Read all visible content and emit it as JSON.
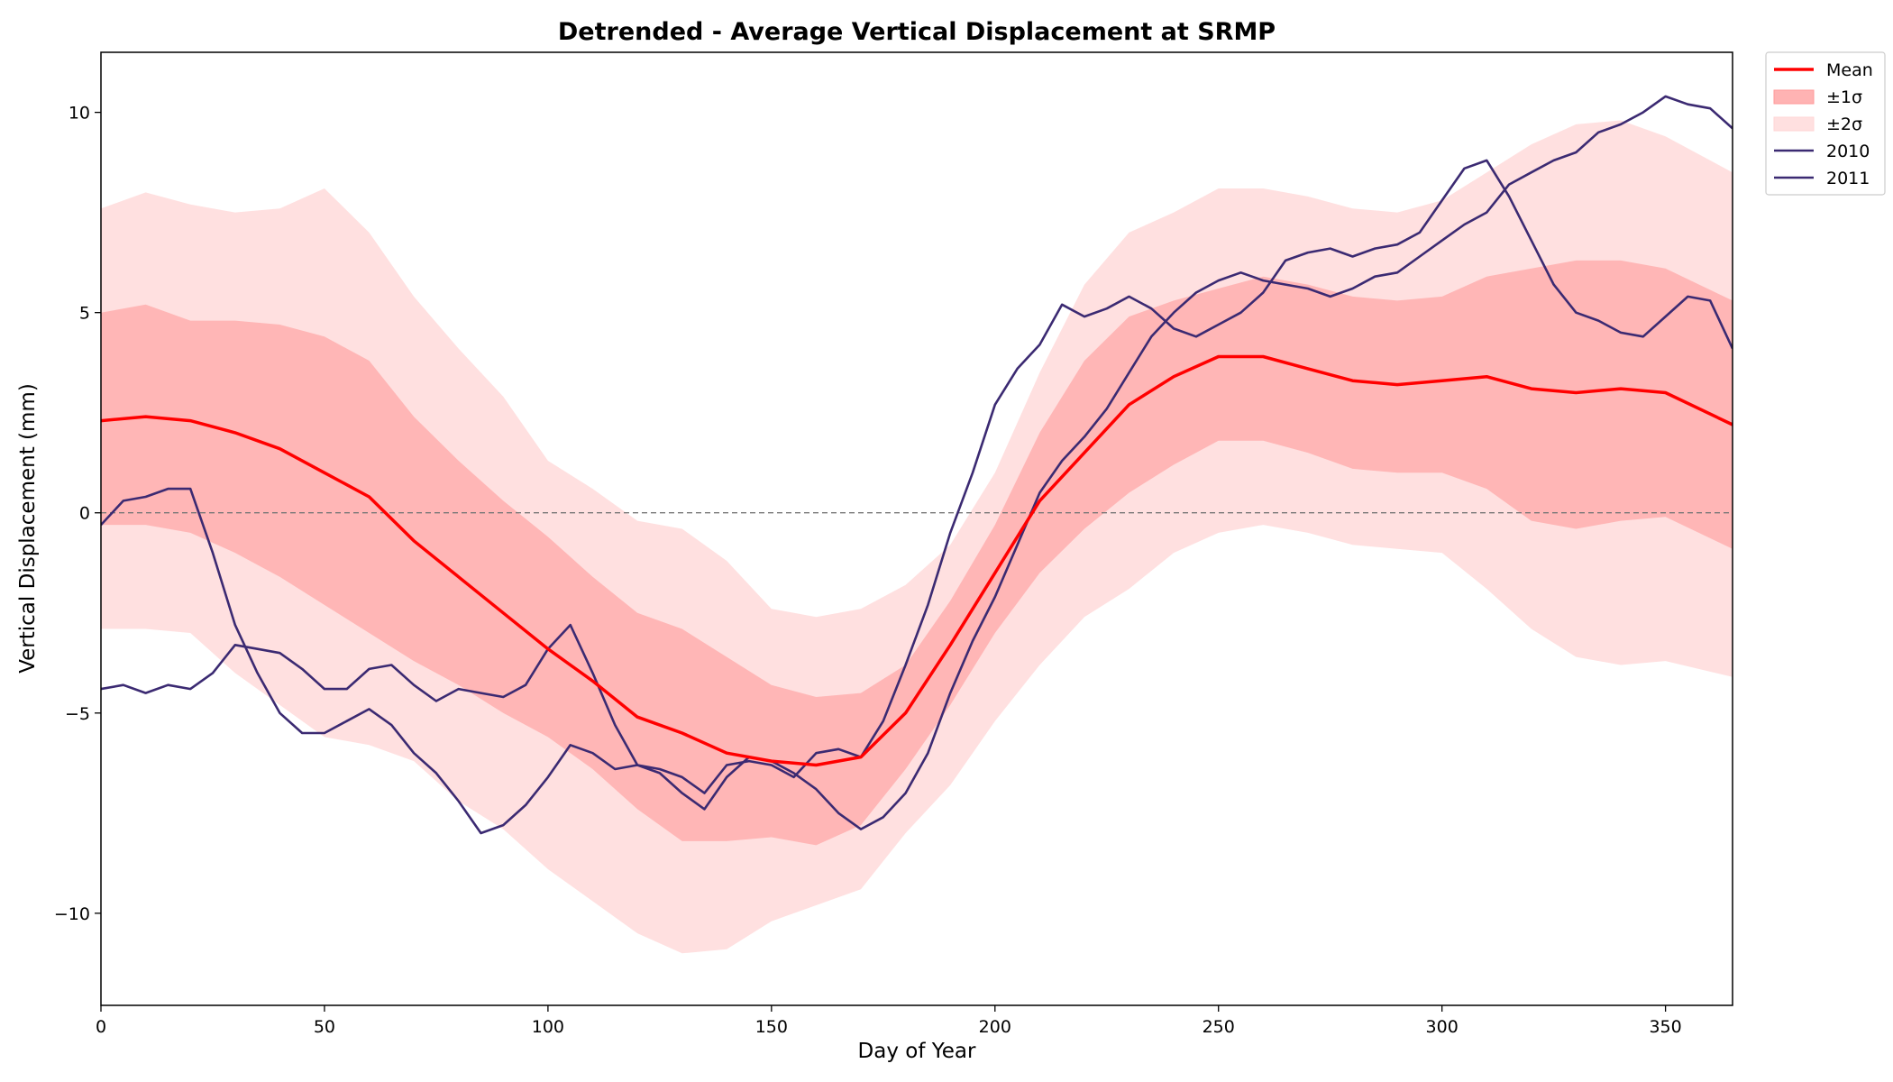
{
  "chart_data": {
    "type": "line",
    "title": "Detrended - Average Vertical Displacement at SRMP",
    "xlabel": "Day of Year",
    "ylabel": "Vertical Displacement (mm)",
    "xlim": [
      0,
      365
    ],
    "ylim": [
      -12.3,
      11.5
    ],
    "x_ticks": [
      0,
      50,
      100,
      150,
      200,
      250,
      300,
      350
    ],
    "y_ticks": [
      -10,
      -5,
      0,
      5,
      10
    ],
    "x_tick_labels": [
      "0",
      "50",
      "100",
      "150",
      "200",
      "250",
      "300",
      "350"
    ],
    "y_tick_labels": [
      "−10",
      "−5",
      "0",
      "5",
      "10"
    ],
    "reference_line": {
      "y": 0,
      "style": "dashed",
      "color": "#777777"
    },
    "legend_placement": "outside-top-right",
    "grid": false,
    "legend": [
      {
        "label": "Mean",
        "kind": "line",
        "color": "#ff0000"
      },
      {
        "label": "±1σ",
        "kind": "patch",
        "color": "#ff9999"
      },
      {
        "label": "±2σ",
        "kind": "patch",
        "color": "#ffd6d6"
      },
      {
        "label": "2010",
        "kind": "line",
        "color": "#3b2a72"
      },
      {
        "label": "2011",
        "kind": "line",
        "color": "#3b2a72"
      }
    ],
    "mean": {
      "name": "Mean",
      "color": "#ff0000",
      "x": [
        0,
        10,
        20,
        30,
        40,
        50,
        60,
        70,
        80,
        90,
        100,
        110,
        120,
        130,
        140,
        150,
        160,
        170,
        180,
        190,
        200,
        210,
        220,
        230,
        240,
        250,
        260,
        270,
        280,
        290,
        300,
        310,
        320,
        330,
        340,
        350,
        365
      ],
      "y": [
        2.3,
        2.4,
        2.3,
        2.0,
        1.6,
        1.0,
        0.4,
        -0.7,
        -1.6,
        -2.5,
        -3.4,
        -4.2,
        -5.1,
        -5.5,
        -6.0,
        -6.2,
        -6.3,
        -6.1,
        -5.0,
        -3.3,
        -1.5,
        0.3,
        1.5,
        2.7,
        3.4,
        3.9,
        3.9,
        3.6,
        3.3,
        3.2,
        3.3,
        3.4,
        3.1,
        3.0,
        3.1,
        3.0,
        2.2
      ]
    },
    "band_1sigma": {
      "name": "±1σ",
      "color": "#ff9999",
      "x": [
        0,
        10,
        20,
        30,
        40,
        50,
        60,
        70,
        80,
        90,
        100,
        110,
        120,
        130,
        140,
        150,
        160,
        170,
        180,
        190,
        200,
        210,
        220,
        230,
        240,
        250,
        260,
        270,
        280,
        290,
        300,
        310,
        320,
        330,
        340,
        350,
        365
      ],
      "upper": [
        5.0,
        5.2,
        4.8,
        4.8,
        4.7,
        4.4,
        3.8,
        2.4,
        1.3,
        0.3,
        -0.6,
        -1.6,
        -2.5,
        -2.9,
        -3.6,
        -4.3,
        -4.6,
        -4.5,
        -3.8,
        -2.2,
        -0.3,
        2.0,
        3.8,
        4.9,
        5.3,
        5.6,
        5.9,
        5.7,
        5.4,
        5.3,
        5.4,
        5.9,
        6.1,
        6.3,
        6.3,
        6.1,
        5.3
      ],
      "lower": [
        -0.3,
        -0.3,
        -0.5,
        -1.0,
        -1.6,
        -2.3,
        -3.0,
        -3.7,
        -4.3,
        -5.0,
        -5.6,
        -6.4,
        -7.4,
        -8.2,
        -8.2,
        -8.1,
        -8.3,
        -7.8,
        -6.4,
        -4.8,
        -3.0,
        -1.5,
        -0.4,
        0.5,
        1.2,
        1.8,
        1.8,
        1.5,
        1.1,
        1.0,
        1.0,
        0.6,
        -0.2,
        -0.4,
        -0.2,
        -0.1,
        -0.9
      ]
    },
    "band_2sigma": {
      "name": "±2σ",
      "color": "#ffd6d6",
      "x": [
        0,
        10,
        20,
        30,
        40,
        50,
        60,
        70,
        80,
        90,
        100,
        110,
        120,
        130,
        140,
        150,
        160,
        170,
        180,
        190,
        200,
        210,
        220,
        230,
        240,
        250,
        260,
        270,
        280,
        290,
        300,
        310,
        320,
        330,
        340,
        350,
        365
      ],
      "upper": [
        7.6,
        8.0,
        7.7,
        7.5,
        7.6,
        8.1,
        7.0,
        5.4,
        4.1,
        2.9,
        1.3,
        0.6,
        -0.2,
        -0.4,
        -1.2,
        -2.4,
        -2.6,
        -2.4,
        -1.8,
        -0.8,
        1.0,
        3.5,
        5.7,
        7.0,
        7.5,
        8.1,
        8.1,
        7.9,
        7.6,
        7.5,
        7.8,
        8.5,
        9.2,
        9.7,
        9.8,
        9.4,
        8.5
      ],
      "lower": [
        -2.9,
        -2.9,
        -3.0,
        -4.0,
        -4.8,
        -5.6,
        -5.8,
        -6.2,
        -7.2,
        -7.9,
        -8.9,
        -9.7,
        -10.5,
        -11.0,
        -10.9,
        -10.2,
        -9.8,
        -9.4,
        -8.0,
        -6.8,
        -5.2,
        -3.8,
        -2.6,
        -1.9,
        -1.0,
        -0.5,
        -0.3,
        -0.5,
        -0.8,
        -0.9,
        -1.0,
        -1.9,
        -2.9,
        -3.6,
        -3.8,
        -3.7,
        -4.1
      ]
    },
    "series": [
      {
        "name": "2010",
        "color": "#3b2a72",
        "x": [
          0,
          5,
          10,
          15,
          20,
          25,
          30,
          35,
          40,
          45,
          50,
          55,
          60,
          65,
          70,
          75,
          80,
          85,
          90,
          95,
          100,
          105,
          110,
          115,
          120,
          125,
          130,
          135,
          140,
          145,
          150,
          155,
          160,
          165,
          170,
          175,
          180,
          185,
          190,
          195,
          200,
          205,
          210,
          215,
          220,
          225,
          230,
          235,
          240,
          245,
          250,
          255,
          260,
          265,
          270,
          275,
          280,
          285,
          290,
          295,
          300,
          305,
          310,
          315,
          320,
          325,
          330,
          335,
          340,
          345,
          350,
          355,
          360,
          365
        ],
        "y": [
          -0.3,
          0.3,
          0.4,
          0.6,
          0.6,
          -1.0,
          -2.8,
          -4.0,
          -5.0,
          -5.5,
          -5.5,
          -5.2,
          -4.9,
          -5.3,
          -6.0,
          -6.5,
          -7.2,
          -8.0,
          -7.8,
          -7.3,
          -6.6,
          -5.8,
          -6.0,
          -6.4,
          -6.3,
          -6.5,
          -7.0,
          -7.4,
          -6.6,
          -6.1,
          -6.2,
          -6.5,
          -6.9,
          -7.5,
          -7.9,
          -7.6,
          -7.0,
          -6.0,
          -4.5,
          -3.2,
          -2.1,
          -0.8,
          0.5,
          1.3,
          1.9,
          2.6,
          3.5,
          4.4,
          5.0,
          5.5,
          5.8,
          6.0,
          5.8,
          5.7,
          5.6,
          5.4,
          5.6,
          5.9,
          6.0,
          6.4,
          6.8,
          7.2,
          7.5,
          8.2,
          8.5,
          8.8,
          9.0,
          9.5,
          9.7,
          10.0,
          10.4,
          10.2,
          10.1,
          9.6
        ]
      },
      {
        "name": "2011",
        "color": "#3b2a72",
        "x": [
          0,
          5,
          10,
          15,
          20,
          25,
          30,
          35,
          40,
          45,
          50,
          55,
          60,
          65,
          70,
          75,
          80,
          85,
          90,
          95,
          100,
          105,
          110,
          115,
          120,
          125,
          130,
          135,
          140,
          145,
          150,
          155,
          160,
          165,
          170,
          175,
          180,
          185,
          190,
          195,
          200,
          205,
          210,
          215,
          220,
          225,
          230,
          235,
          240,
          245,
          250,
          255,
          260,
          265,
          270,
          275,
          280,
          285,
          290,
          295,
          300,
          305,
          310,
          315,
          320,
          325,
          330,
          335,
          340,
          345,
          350,
          355,
          360,
          365
        ],
        "y": [
          -4.4,
          -4.3,
          -4.5,
          -4.3,
          -4.4,
          -4.0,
          -3.3,
          -3.4,
          -3.5,
          -3.9,
          -4.4,
          -4.4,
          -3.9,
          -3.8,
          -4.3,
          -4.7,
          -4.4,
          -4.5,
          -4.6,
          -4.3,
          -3.4,
          -2.8,
          -4.0,
          -5.3,
          -6.3,
          -6.4,
          -6.6,
          -7.0,
          -6.3,
          -6.2,
          -6.3,
          -6.6,
          -6.0,
          -5.9,
          -6.1,
          -5.2,
          -3.8,
          -2.3,
          -0.5,
          1.0,
          2.7,
          3.6,
          4.2,
          5.2,
          4.9,
          5.1,
          5.4,
          5.1,
          4.6,
          4.4,
          4.7,
          5.0,
          5.5,
          6.3,
          6.5,
          6.6,
          6.4,
          6.6,
          6.7,
          7.0,
          7.8,
          8.6,
          8.8,
          7.9,
          6.8,
          5.7,
          5.0,
          4.8,
          4.5,
          4.4,
          4.9,
          5.4,
          5.3,
          4.1
        ]
      }
    ]
  }
}
